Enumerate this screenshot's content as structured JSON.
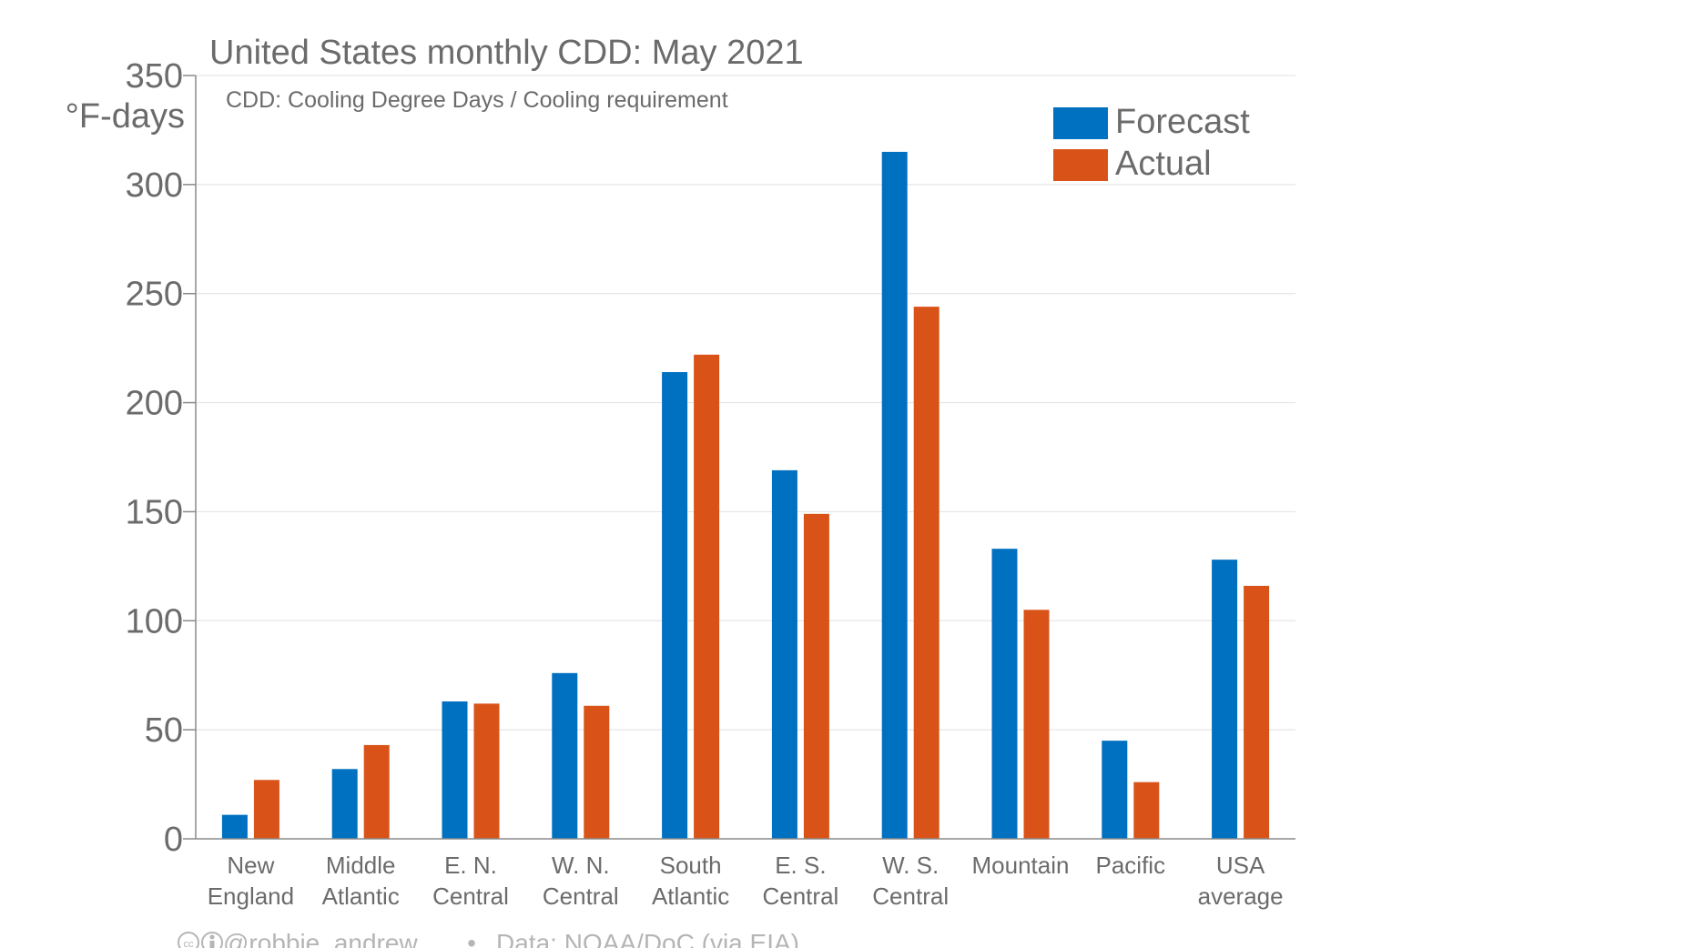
{
  "chart_data": {
    "type": "bar",
    "title": "United States monthly CDD: May 2021",
    "subtitle": "CDD: Cooling Degree Days / Cooling requirement",
    "ylabel": "°F-days",
    "ylim": [
      0,
      350
    ],
    "yticks": [
      "0",
      "50",
      "100",
      "150",
      "200",
      "250",
      "300",
      "350"
    ],
    "categories": [
      [
        "New",
        "England"
      ],
      [
        "Middle",
        "Atlantic"
      ],
      [
        "E. N.",
        "Central"
      ],
      [
        "W. N.",
        "Central"
      ],
      [
        "South",
        "Atlantic"
      ],
      [
        "E. S.",
        "Central"
      ],
      [
        "W. S.",
        "Central"
      ],
      [
        "Mountain"
      ],
      [
        "Pacific"
      ],
      [
        "USA",
        "average"
      ]
    ],
    "series": [
      {
        "name": "Forecast",
        "color": "#0070c0",
        "values": [
          11,
          32,
          63,
          76,
          214,
          169,
          315,
          133,
          45,
          128
        ]
      },
      {
        "name": "Actual",
        "color": "#d95319",
        "values": [
          27,
          43,
          62,
          61,
          222,
          149,
          244,
          105,
          26,
          116
        ]
      }
    ],
    "grid": true,
    "legend_position": "top-right"
  },
  "credit": {
    "icons": [
      "cc-icon",
      "attribution-icon"
    ],
    "author": "@robbie_andrew",
    "separator": "•",
    "source": "Data: NOAA/DoC (via EIA)"
  }
}
